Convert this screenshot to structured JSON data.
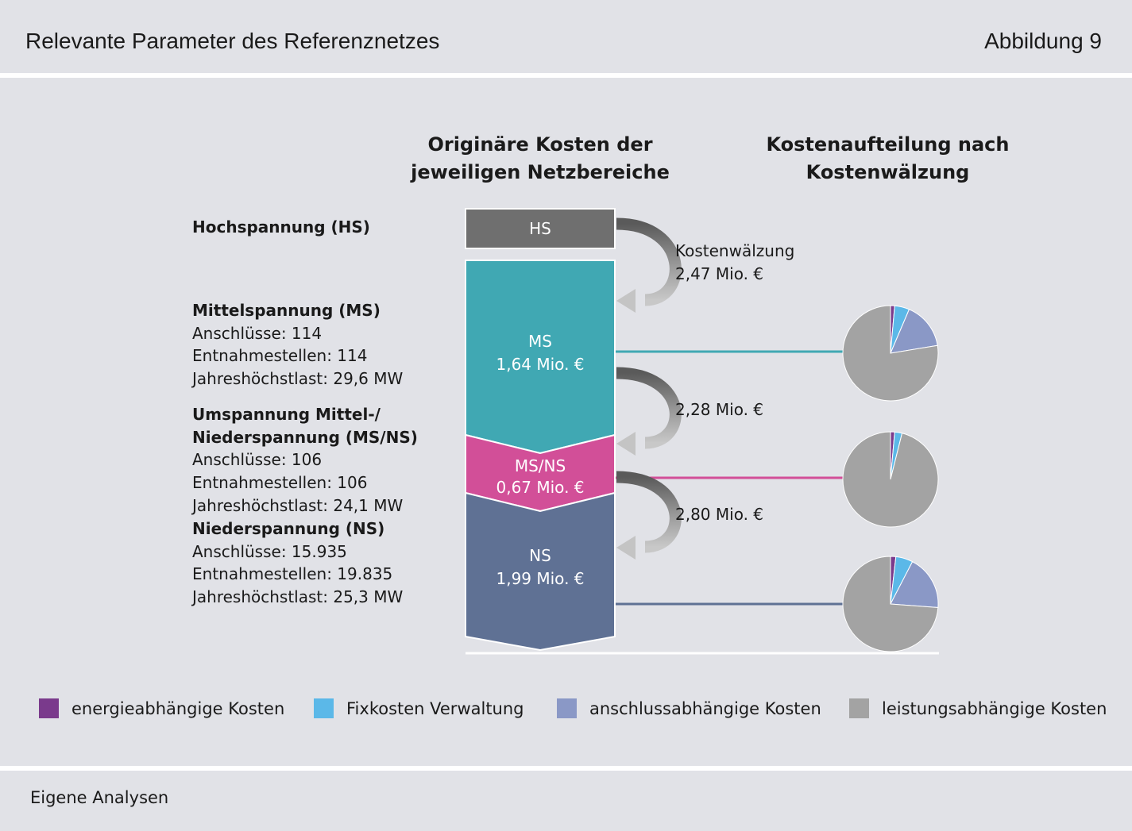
{
  "header": {
    "title": "Relevante Parameter des Referenznetzes",
    "figure_number": "Abbildung 9"
  },
  "columns": {
    "left_title": [
      "Originäre Kosten der",
      "jeweiligen Netzbereiche"
    ],
    "right_title": [
      "Kostenaufteilung nach",
      "Kostenwälzung"
    ]
  },
  "levels": {
    "hs": {
      "heading": "Hochspannung (HS)"
    },
    "ms": {
      "heading": "Mittelspannung (MS)",
      "anschluesse": "Anschlüsse: 114",
      "entnahmestellen": "Entnahmestellen: 114",
      "hoechstlast": "Jahreshöchstlast: 29,6 MW"
    },
    "msns": {
      "heading_line1": "Umspannung Mittel-/",
      "heading_line2": "Niederspannung (MS/NS)",
      "anschluesse": "Anschlüsse: 106",
      "entnahmestellen": "Entnahmestellen: 106",
      "hoechstlast": "Jahreshöchstlast: 24,1 MW"
    },
    "ns": {
      "heading": "Niederspannung (NS)",
      "anschluesse": "Anschlüsse: 15.935",
      "entnahmestellen": "Entnahmestellen: 19.835",
      "hoechstlast": "Jahreshöchstlast: 25,3 MW"
    }
  },
  "blocks": {
    "hs": {
      "label": "HS",
      "color": "#6f6f6f"
    },
    "ms": {
      "label": "MS",
      "value": "1,64 Mio. €",
      "color": "#40a8b3"
    },
    "msns": {
      "label": "MS/NS",
      "value": "0,67 Mio. €",
      "color": "#d24f98"
    },
    "ns": {
      "label": "NS",
      "value": "1,99 Mio. €",
      "color": "#5f7194"
    }
  },
  "transfers": {
    "label": "Kostenwälzung",
    "hs_to_ms": "2,47 Mio. €",
    "ms_to_msns": "2,28 Mio. €",
    "msns_to_ns": "2,80 Mio. €"
  },
  "legend": [
    {
      "label": "energieabhängige Kosten",
      "color": "#7a3a8c"
    },
    {
      "label": "Fixkosten Verwaltung",
      "color": "#5bb8e8"
    },
    {
      "label": "anschlussabhängige Kosten",
      "color": "#8a98c6"
    },
    {
      "label": "leistungsabhängige Kosten",
      "color": "#a3a3a3"
    }
  ],
  "pies": [
    {
      "level": "MS",
      "fractions": [
        0.014,
        0.05,
        0.16,
        0.776
      ]
    },
    {
      "level": "MS/NS",
      "fractions": [
        0.014,
        0.025,
        0.0,
        0.961
      ]
    },
    {
      "level": "NS",
      "fractions": [
        0.018,
        0.058,
        0.186,
        0.738
      ]
    }
  ],
  "footer": {
    "source": "Eigene Analysen"
  }
}
